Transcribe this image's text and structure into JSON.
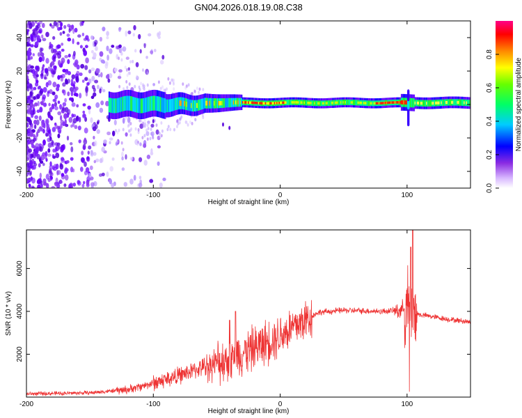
{
  "title": "GN04.2026.018.19.08.C38",
  "chart_data": [
    {
      "type": "heatmap",
      "name": "spectrogram",
      "xlabel": "Height of straight line (km)",
      "ylabel": "Frequency (Hz)",
      "xlim": [
        -200,
        150
      ],
      "ylim": [
        -50,
        50
      ],
      "xticks": [
        "-200",
        "-100",
        "0",
        "100"
      ],
      "xtick_values": [
        -200,
        -100,
        0,
        100
      ],
      "yticks": [
        "-40",
        "-20",
        "0",
        "20",
        "40"
      ],
      "ytick_values": [
        -40,
        -20,
        0,
        20,
        40
      ],
      "colorbar": {
        "label": "Normalized spectral amplitude",
        "range": [
          0,
          1
        ],
        "ticks": [
          "0.0",
          "0.2",
          "0.4",
          "0.6",
          "0.8"
        ],
        "tick_values": [
          0.0,
          0.2,
          0.4,
          0.6,
          0.8
        ]
      },
      "features": {
        "noise_region_x": [
          -200,
          -100
        ],
        "signal_start_x": -135,
        "signal_freq_approx": 1,
        "peak_segments_x": [
          [
            -30,
            5
          ],
          [
            75,
            100
          ]
        ],
        "spike_x": 100
      }
    },
    {
      "type": "line",
      "name": "snr",
      "xlabel": "Height of straight line (km)",
      "ylabel": "SNR (10 * v/v)",
      "xlim": [
        -200,
        150
      ],
      "ylim": [
        0,
        7800
      ],
      "xticks": [
        "-200",
        "-100",
        "0",
        "100"
      ],
      "xtick_values": [
        -200,
        -100,
        0,
        100
      ],
      "yticks": [
        "2000",
        "4000",
        "6000"
      ],
      "ytick_values": [
        2000,
        4000,
        6000
      ],
      "color": "#ee3333",
      "series_shape": {
        "x": [
          -200,
          -150,
          -120,
          -100,
          -80,
          -60,
          -40,
          -20,
          0,
          20,
          30,
          50,
          80,
          95,
          100,
          103,
          106,
          110,
          130,
          150
        ],
        "y": [
          150,
          200,
          350,
          650,
          1000,
          1400,
          1800,
          2300,
          2900,
          3600,
          3950,
          4050,
          4000,
          4050,
          4300,
          4100,
          3900,
          3850,
          3650,
          3500
        ]
      }
    }
  ]
}
